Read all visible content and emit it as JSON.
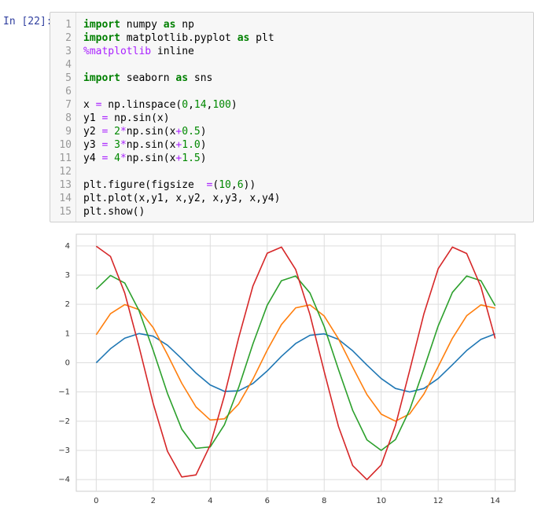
{
  "cell": {
    "prompt": "In [22]:",
    "code": [
      {
        "number": 1,
        "text": "import numpy as np"
      },
      {
        "number": 2,
        "text": "import matplotlib.pyplot as plt"
      },
      {
        "number": 3,
        "text": "%matplotlib inline"
      },
      {
        "number": 4
      },
      {
        "number": 5,
        "text": "import seaborn as sns"
      },
      {
        "number": 6
      },
      {
        "number": 7,
        "text": "x = np.linspace(0,14,100)"
      },
      {
        "number": 8,
        "text": "y1 = np.sin(x)"
      },
      {
        "number": 9,
        "text": "y2 = 2*np.sin(x+0.5)"
      },
      {
        "number": 10,
        "text": "y3 = 3*np.sin(x+1.0)"
      },
      {
        "number": 11,
        "text": "y4 = 4*np.sin(x+1.5)"
      },
      {
        "number": 12
      },
      {
        "number": 13,
        "text": "plt.figure(figsize  =(10,6))"
      },
      {
        "number": 14,
        "text": "plt.plot(x,y1, x,y2, x,y3, x,y4)"
      },
      {
        "number": 15,
        "text": "plt.show()"
      }
    ]
  },
  "chart_data": {
    "type": "line",
    "grid": true,
    "x": [
      0,
      0.5,
      1,
      1.5,
      2,
      2.5,
      3,
      3.5,
      4,
      4.5,
      5,
      5.5,
      6,
      6.5,
      7,
      7.5,
      8,
      8.5,
      9,
      9.5,
      10,
      10.5,
      11,
      11.5,
      12,
      12.5,
      13,
      13.5,
      14
    ],
    "series": [
      {
        "color": "#1f77b4",
        "values": [
          0,
          0.48,
          0.84,
          1,
          0.91,
          0.6,
          0.14,
          -0.35,
          -0.76,
          -0.98,
          -0.96,
          -0.71,
          -0.28,
          0.22,
          0.66,
          0.94,
          0.99,
          0.8,
          0.41,
          -0.08,
          -0.54,
          -0.88,
          -1,
          -0.88,
          -0.54,
          -0.07,
          0.42,
          0.8,
          0.99
        ]
      },
      {
        "color": "#ff7f0e",
        "values": [
          0.96,
          1.68,
          1.99,
          1.82,
          1.2,
          0.28,
          -0.7,
          -1.51,
          -1.96,
          -1.92,
          -1.41,
          -0.56,
          0.43,
          1.31,
          1.88,
          1.98,
          1.6,
          0.82,
          -0.15,
          -1.09,
          -1.76,
          -2,
          -1.75,
          -1.07,
          -0.13,
          0.84,
          1.61,
          1.98,
          1.87
        ]
      },
      {
        "color": "#2ca02c",
        "values": [
          2.52,
          2.99,
          2.73,
          1.79,
          0.42,
          -1.05,
          -2.27,
          -2.93,
          -2.88,
          -2.12,
          -0.84,
          0.65,
          1.97,
          2.81,
          2.97,
          2.39,
          1.24,
          -0.23,
          -1.63,
          -2.64,
          -3,
          -2.63,
          -1.61,
          -0.2,
          1.26,
          2.41,
          2.97,
          2.81,
          1.95
        ]
      },
      {
        "color": "#d62728",
        "values": [
          3.99,
          3.64,
          2.39,
          0.56,
          -1.4,
          -3.03,
          -3.91,
          -3.84,
          -2.82,
          -1.12,
          0.86,
          2.63,
          3.75,
          3.96,
          3.19,
          1.65,
          -0.3,
          -2.18,
          -3.52,
          -4,
          -3.5,
          -2.15,
          -0.26,
          1.68,
          3.22,
          3.96,
          3.74,
          2.6,
          0.83
        ]
      }
    ],
    "xlim": [
      -0.7,
      14.7
    ],
    "ylim": [
      -4.4,
      4.4
    ],
    "xticks": [
      0,
      2,
      4,
      6,
      8,
      10,
      12,
      14
    ],
    "yticks": [
      {
        "value": -4,
        "label": "−4"
      },
      {
        "value": -3,
        "label": "−3"
      },
      {
        "value": -2,
        "label": "−2"
      },
      {
        "value": -1,
        "label": "−1"
      },
      0,
      1,
      2,
      3,
      4
    ]
  }
}
